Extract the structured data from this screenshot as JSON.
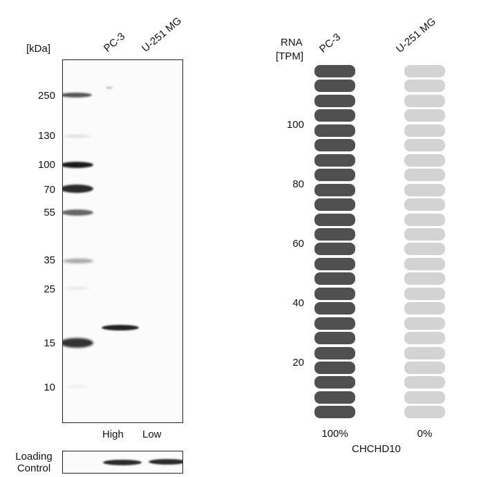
{
  "western_blot": {
    "unit_label": "[kDa]",
    "lanes": [
      "PC-3",
      "U-251 MG"
    ],
    "markers": [
      "250",
      "130",
      "100",
      "70",
      "55",
      "35",
      "25",
      "15",
      "10"
    ],
    "expression_labels": [
      "High",
      "Low"
    ],
    "loading_control_line1": "Loading",
    "loading_control_line2": "Control"
  },
  "chart_data": {
    "type": "bar",
    "title": "",
    "gene": "CHCHD10",
    "ylabel_line1": "RNA",
    "ylabel_line2": "[TPM]",
    "y_ticks": [
      "100",
      "80",
      "60",
      "40",
      "20"
    ],
    "categories": [
      "PC-3",
      "U-251 MG"
    ],
    "values_percent": [
      100,
      0
    ],
    "percent_labels": [
      "100%",
      "0%"
    ],
    "segments_per_bar": 24,
    "colors": {
      "filled": "#505050",
      "empty": "#d3d3d3"
    }
  }
}
